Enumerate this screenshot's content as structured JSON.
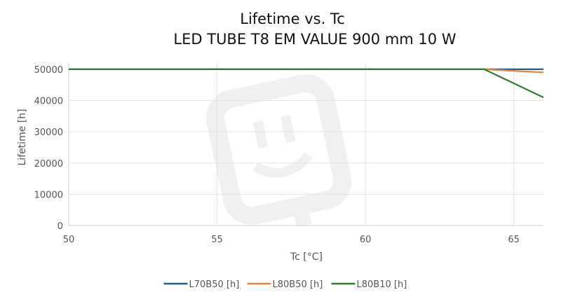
{
  "chart_data": {
    "type": "line",
    "title_line1": "Lifetime vs. Tc",
    "title_line2": "LED TUBE T8 EM VALUE 900 mm 10 W",
    "xlabel": "Tc [°C]",
    "ylabel": "Lifetime [h]",
    "xlim": [
      50,
      66
    ],
    "ylim": [
      0,
      52000
    ],
    "xticks": [
      50,
      55,
      60,
      65
    ],
    "yticks": [
      0,
      10000,
      20000,
      30000,
      40000,
      50000
    ],
    "grid": true,
    "legend_position": "bottom-center",
    "series": [
      {
        "name": "L70B50 [h]",
        "color": "#1f5f8b",
        "points": [
          [
            50,
            50000
          ],
          [
            64,
            50000
          ],
          [
            66,
            50000
          ]
        ]
      },
      {
        "name": "L80B50 [h]",
        "color": "#f07f3c",
        "points": [
          [
            50,
            50000
          ],
          [
            64,
            50000
          ],
          [
            66,
            49000
          ]
        ]
      },
      {
        "name": "L80B10 [h]",
        "color": "#2e7d32",
        "points": [
          [
            50,
            50000
          ],
          [
            64,
            50000
          ],
          [
            66,
            41000
          ]
        ]
      }
    ]
  }
}
